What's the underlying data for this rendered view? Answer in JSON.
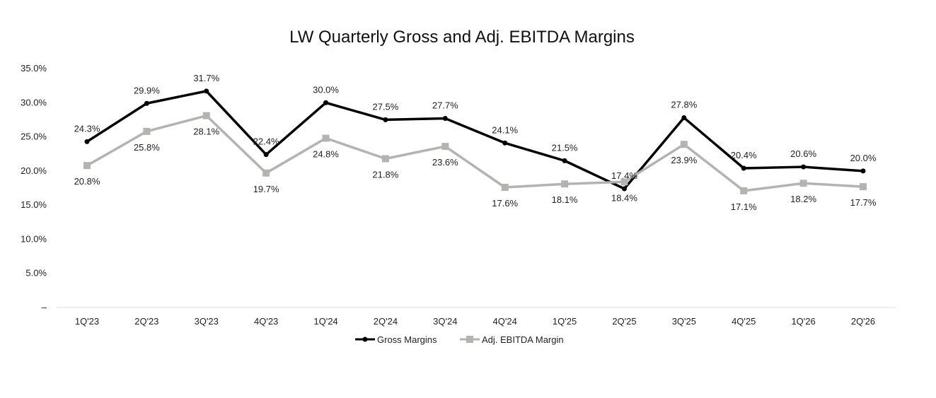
{
  "chart_data": {
    "type": "line",
    "title": "LW Quarterly Gross and Adj. EBITDA Margins",
    "xlabel": "",
    "ylabel": "",
    "categories": [
      "1Q'23",
      "2Q'23",
      "3Q'23",
      "4Q'23",
      "1Q'24",
      "2Q'24",
      "3Q'24",
      "4Q'24",
      "1Q'25",
      "2Q'25",
      "3Q'25",
      "4Q'25",
      "1Q'26",
      "2Q'26"
    ],
    "ylim": [
      0,
      35
    ],
    "yticks": [
      0,
      5,
      10,
      15,
      20,
      25,
      30,
      35
    ],
    "ytick_labels": [
      "–",
      "5.0%",
      "10.0%",
      "15.0%",
      "20.0%",
      "25.0%",
      "30.0%",
      "35.0%"
    ],
    "grid": false,
    "legend_position": "bottom",
    "series": [
      {
        "name": "Gross Margins",
        "color": "#000000",
        "marker": "circle",
        "label_position": "above",
        "values": [
          24.3,
          29.9,
          31.7,
          22.4,
          30.0,
          27.5,
          27.7,
          24.1,
          21.5,
          17.4,
          27.8,
          20.4,
          20.6,
          20.0
        ]
      },
      {
        "name": "Adj. EBITDA Margin",
        "color": "#b3b3b0",
        "marker": "square",
        "label_position": "below",
        "values": [
          20.8,
          25.8,
          28.1,
          19.7,
          24.8,
          21.8,
          23.6,
          17.6,
          18.1,
          18.4,
          23.9,
          17.1,
          18.2,
          17.7
        ]
      }
    ]
  }
}
